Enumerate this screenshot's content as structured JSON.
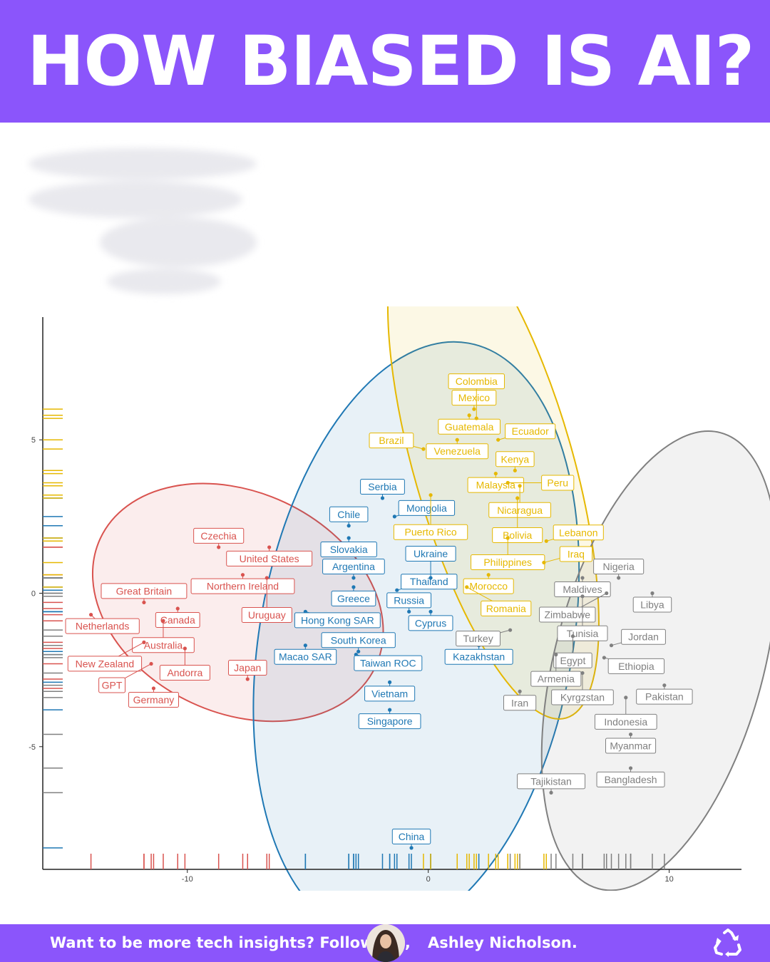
{
  "header": {
    "title": "HOW BIASED IS AI?"
  },
  "footer": {
    "cta": "Want to be more tech insights? Follow me,",
    "author": "Ashley Nicholson.",
    "avatar_icon": "avatar-photo",
    "share_icon": "recycle-icon"
  },
  "colors": {
    "brand": "#8b55fb",
    "red": "#d9534f",
    "blue": "#1f78b4",
    "yellow": "#e6b800",
    "gray": "#808080"
  },
  "chart_data": {
    "type": "scatter",
    "title": "",
    "xlabel": "",
    "ylabel": "",
    "xlim": [
      -16,
      13
    ],
    "ylim": [
      -9,
      9
    ],
    "xticks": [
      -10,
      0,
      10
    ],
    "yticks": [
      5,
      0,
      -5
    ],
    "grid": false,
    "legend": "none",
    "rug": true,
    "series": [
      {
        "color": "#d9534f",
        "ellipse": {
          "cx": -7.9,
          "cy": -0.3,
          "rx": 6.3,
          "ry": 3.6,
          "angle": 25
        },
        "points": [
          {
            "label": "Czechia",
            "x": -8.7,
            "y": 1.5
          },
          {
            "label": "United States",
            "x": -6.6,
            "y": 1.5
          },
          {
            "label": "Northern Ireland",
            "x": -7.7,
            "y": 0.6
          },
          {
            "label": "Uruguay",
            "x": -6.7,
            "y": 0.5
          },
          {
            "label": "Great Britain",
            "x": -11.8,
            "y": -0.3
          },
          {
            "label": "Canada",
            "x": -10.4,
            "y": -0.5
          },
          {
            "label": "Australia",
            "x": -11.0,
            "y": -0.9
          },
          {
            "label": "Netherlands",
            "x": -14.0,
            "y": -0.7
          },
          {
            "label": "Andorra",
            "x": -10.1,
            "y": -1.8
          },
          {
            "label": "New Zealand",
            "x": -11.8,
            "y": -1.6
          },
          {
            "label": "GPT",
            "x": -11.5,
            "y": -2.3
          },
          {
            "label": "Japan",
            "x": -7.5,
            "y": -2.8
          },
          {
            "label": "Germany",
            "x": -11.4,
            "y": -3.1
          }
        ]
      },
      {
        "color": "#1f78b4",
        "ellipse": {
          "cx": -0.5,
          "cy": -1.5,
          "rx": 6.5,
          "ry": 9.8,
          "angle": 10
        },
        "points": [
          {
            "label": "Serbia",
            "x": -1.9,
            "y": 3.1
          },
          {
            "label": "Chile",
            "x": -3.3,
            "y": 2.2
          },
          {
            "label": "Mongolia",
            "x": -1.4,
            "y": 2.5
          },
          {
            "label": "Slovakia",
            "x": -3.3,
            "y": 1.8
          },
          {
            "label": "Argentina",
            "x": -3.1,
            "y": 0.5
          },
          {
            "label": "Greece",
            "x": -3.1,
            "y": 0.2
          },
          {
            "label": "Thailand",
            "x": -1.3,
            "y": 0.1
          },
          {
            "label": "Ukraine",
            "x": 0.1,
            "y": 0.5
          },
          {
            "label": "Hong Kong SAR",
            "x": -5.1,
            "y": -0.6
          },
          {
            "label": "Russia",
            "x": -0.8,
            "y": -0.6
          },
          {
            "label": "Cyprus",
            "x": 0.1,
            "y": -0.6
          },
          {
            "label": "Macao SAR",
            "x": -5.1,
            "y": -1.7
          },
          {
            "label": "South Korea",
            "x": -2.9,
            "y": -1.9
          },
          {
            "label": "Taiwan ROC",
            "x": -3.0,
            "y": -2.0
          },
          {
            "label": "Kazakhstan",
            "x": 2.1,
            "y": -1.7
          },
          {
            "label": "Vietnam",
            "x": -1.6,
            "y": -2.9
          },
          {
            "label": "Singapore",
            "x": -1.6,
            "y": -3.8
          },
          {
            "label": "China",
            "x": -0.7,
            "y": -8.3
          }
        ]
      },
      {
        "color": "#e6b800",
        "ellipse": {
          "cx": 2.7,
          "cy": 4.2,
          "rx": 3.3,
          "ry": 8.6,
          "angle": -16
        },
        "points": [
          {
            "label": "Mexico",
            "x": 1.9,
            "y": 6.0
          },
          {
            "label": "Guatemala",
            "x": 1.7,
            "y": 5.8
          },
          {
            "label": "Colombia",
            "x": 2.0,
            "y": 5.7
          },
          {
            "label": "Venezuela",
            "x": 1.2,
            "y": 5.0
          },
          {
            "label": "Ecuador",
            "x": 2.9,
            "y": 5.0
          },
          {
            "label": "Brazil",
            "x": -0.2,
            "y": 4.7
          },
          {
            "label": "Malaysia",
            "x": 2.8,
            "y": 3.9
          },
          {
            "label": "Kenya",
            "x": 3.6,
            "y": 4.0
          },
          {
            "label": "Puerto Rico",
            "x": 0.1,
            "y": 3.2
          },
          {
            "label": "Nicaragua",
            "x": 3.8,
            "y": 3.5
          },
          {
            "label": "Peru",
            "x": 3.3,
            "y": 3.6
          },
          {
            "label": "Bolivia",
            "x": 3.7,
            "y": 3.1
          },
          {
            "label": "Philippines",
            "x": 3.3,
            "y": 1.8
          },
          {
            "label": "Lebanon",
            "x": 4.9,
            "y": 1.7
          },
          {
            "label": "Iraq",
            "x": 4.8,
            "y": 1.0
          },
          {
            "label": "Morocco",
            "x": 2.5,
            "y": 0.6
          },
          {
            "label": "Romania",
            "x": 1.6,
            "y": 0.2
          }
        ]
      },
      {
        "color": "#808080",
        "ellipse": {
          "cx": 9.6,
          "cy": -2.2,
          "rx": 9.8,
          "ry": 3.4,
          "angle": -75
        },
        "points": [
          {
            "label": "Nigeria",
            "x": 7.9,
            "y": 0.5
          },
          {
            "label": "Libya",
            "x": 9.3,
            "y": 0.0
          },
          {
            "label": "Maldives",
            "x": 6.4,
            "y": 0.5
          },
          {
            "label": "Zimbabwe",
            "x": 7.4,
            "y": 0.0
          },
          {
            "label": "Tunisia",
            "x": 6.4,
            "y": -0.1
          },
          {
            "label": "Turkey",
            "x": 3.4,
            "y": -1.2
          },
          {
            "label": "Egypt",
            "x": 6.0,
            "y": -1.4
          },
          {
            "label": "Jordan",
            "x": 7.6,
            "y": -1.7
          },
          {
            "label": "Armenia",
            "x": 5.3,
            "y": -2.0
          },
          {
            "label": "Ethiopia",
            "x": 7.3,
            "y": -2.1
          },
          {
            "label": "Pakistan",
            "x": 9.8,
            "y": -3.0
          },
          {
            "label": "Kyrgzstan",
            "x": 6.4,
            "y": -2.6
          },
          {
            "label": "Iran",
            "x": 3.8,
            "y": -3.2
          },
          {
            "label": "Indonesia",
            "x": 8.2,
            "y": -3.4
          },
          {
            "label": "Myanmar",
            "x": 8.4,
            "y": -4.6
          },
          {
            "label": "Bangladesh",
            "x": 8.4,
            "y": -5.7
          },
          {
            "label": "Tajikistan",
            "x": 5.1,
            "y": -6.5
          }
        ]
      }
    ]
  }
}
